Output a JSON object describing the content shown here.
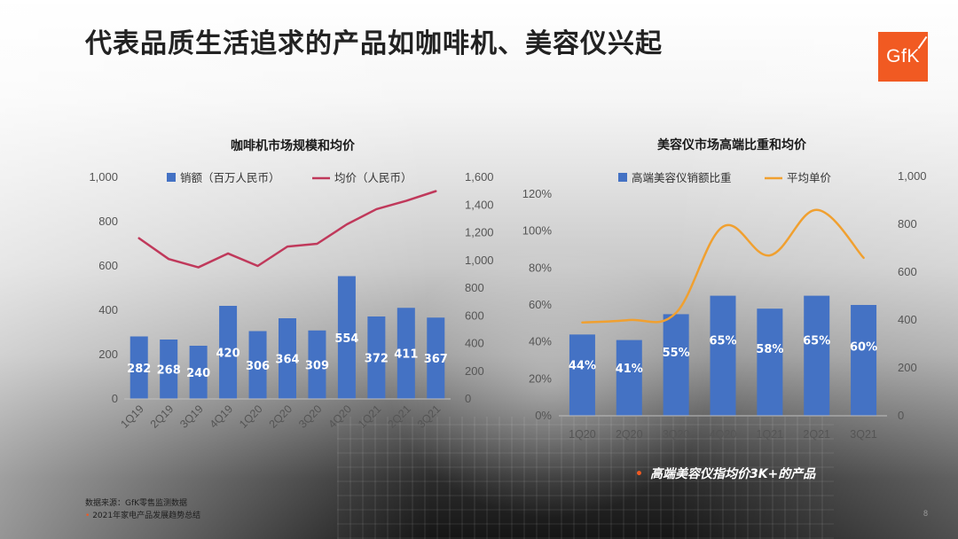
{
  "page": {
    "title": "代表品质生活追求的产品如咖啡机、美容仪兴起",
    "logo_text": "GfK",
    "annotation_bullet": "•",
    "annotation": "高端美容仪指均价3K+的产品",
    "footnote_source": "数据来源：GfK零售监测数据",
    "footnote_bullet": "•",
    "footnote_report": "2021年家电产品发展趋势总结",
    "page_number": "8"
  },
  "colors": {
    "bar": "#4472c4",
    "coffee_line": "#c0395b",
    "beauty_line": "#f0a030",
    "accent": "#f15a22"
  },
  "chart_data": [
    {
      "type": "bar",
      "title": "咖啡机市场规模和均价",
      "categories": [
        "1Q19",
        "2Q19",
        "3Q19",
        "4Q19",
        "1Q20",
        "2Q20",
        "3Q20",
        "4Q20",
        "1Q21",
        "2Q21",
        "3Q21"
      ],
      "series": [
        {
          "name": "销额（百万人民币）",
          "type": "bar",
          "axis": "left",
          "values": [
            282,
            268,
            240,
            420,
            306,
            364,
            309,
            554,
            372,
            411,
            367
          ],
          "labels": [
            "282",
            "268",
            "240",
            "420",
            "306",
            "364",
            "309",
            "554",
            "372",
            "411",
            "367"
          ]
        },
        {
          "name": "均价（人民币）",
          "type": "line",
          "axis": "right",
          "values": [
            1160,
            1010,
            950,
            1050,
            960,
            1100,
            1120,
            1260,
            1370,
            1430,
            1500
          ]
        }
      ],
      "y_left": {
        "ylim": [
          0,
          1000
        ],
        "ticks": [
          "0",
          "200",
          "400",
          "600",
          "800",
          "1,000"
        ]
      },
      "y_right": {
        "ylim": [
          0,
          1600
        ],
        "ticks": [
          "0",
          "200",
          "400",
          "600",
          "800",
          "1,000",
          "1,200",
          "1,400",
          "1,600"
        ]
      },
      "grid": false,
      "legend": "top"
    },
    {
      "type": "bar",
      "title": "美容仪市场高端比重和均价",
      "categories": [
        "1Q20",
        "2Q20",
        "3Q20",
        "4Q20",
        "1Q21",
        "2Q21",
        "3Q21"
      ],
      "series": [
        {
          "name": "高端美容仪销额比重",
          "type": "bar",
          "axis": "left",
          "values": [
            44,
            41,
            55,
            65,
            58,
            65,
            60
          ],
          "labels": [
            "44%",
            "41%",
            "55%",
            "65%",
            "58%",
            "65%",
            "60%"
          ]
        },
        {
          "name": "平均单价",
          "type": "line",
          "axis": "right",
          "smooth": true,
          "values": [
            390,
            400,
            430,
            790,
            670,
            860,
            660
          ]
        }
      ],
      "y_left": {
        "ylim": [
          0,
          120
        ],
        "ticks": [
          "0%",
          "20%",
          "40%",
          "60%",
          "80%",
          "100%",
          "120%"
        ]
      },
      "y_right": {
        "ylim": [
          0,
          1000
        ],
        "ticks": [
          "0",
          "200",
          "400",
          "600",
          "800",
          "1,000"
        ]
      },
      "grid": false,
      "legend": "top"
    }
  ]
}
